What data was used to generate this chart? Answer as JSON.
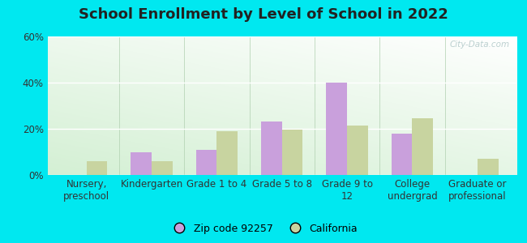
{
  "title": "School Enrollment by Level of School in 2022",
  "categories": [
    "Nursery,\npreschool",
    "Kindergarten",
    "Grade 1 to 4",
    "Grade 5 to 8",
    "Grade 9 to\n12",
    "College\nundergrad",
    "Graduate or\nprofessional"
  ],
  "zip_values": [
    0.0,
    10.0,
    11.0,
    23.0,
    40.0,
    18.0,
    0.0
  ],
  "ca_values": [
    6.0,
    6.0,
    19.0,
    19.5,
    21.5,
    24.5,
    7.0
  ],
  "zip_color": "#c9a0dc",
  "ca_color": "#c8d4a0",
  "zip_label": "Zip code 92257",
  "ca_label": "California",
  "ylim": [
    0,
    60
  ],
  "yticks": [
    0,
    20,
    40,
    60
  ],
  "ytick_labels": [
    "0%",
    "20%",
    "40%",
    "60%"
  ],
  "bg_outer": "#00e8f0",
  "bg_plot_top": "#ffffff",
  "bg_plot_bottom": "#d4f0d4",
  "watermark": "City-Data.com",
  "title_fontsize": 13,
  "tick_fontsize": 8.5,
  "legend_fontsize": 9
}
